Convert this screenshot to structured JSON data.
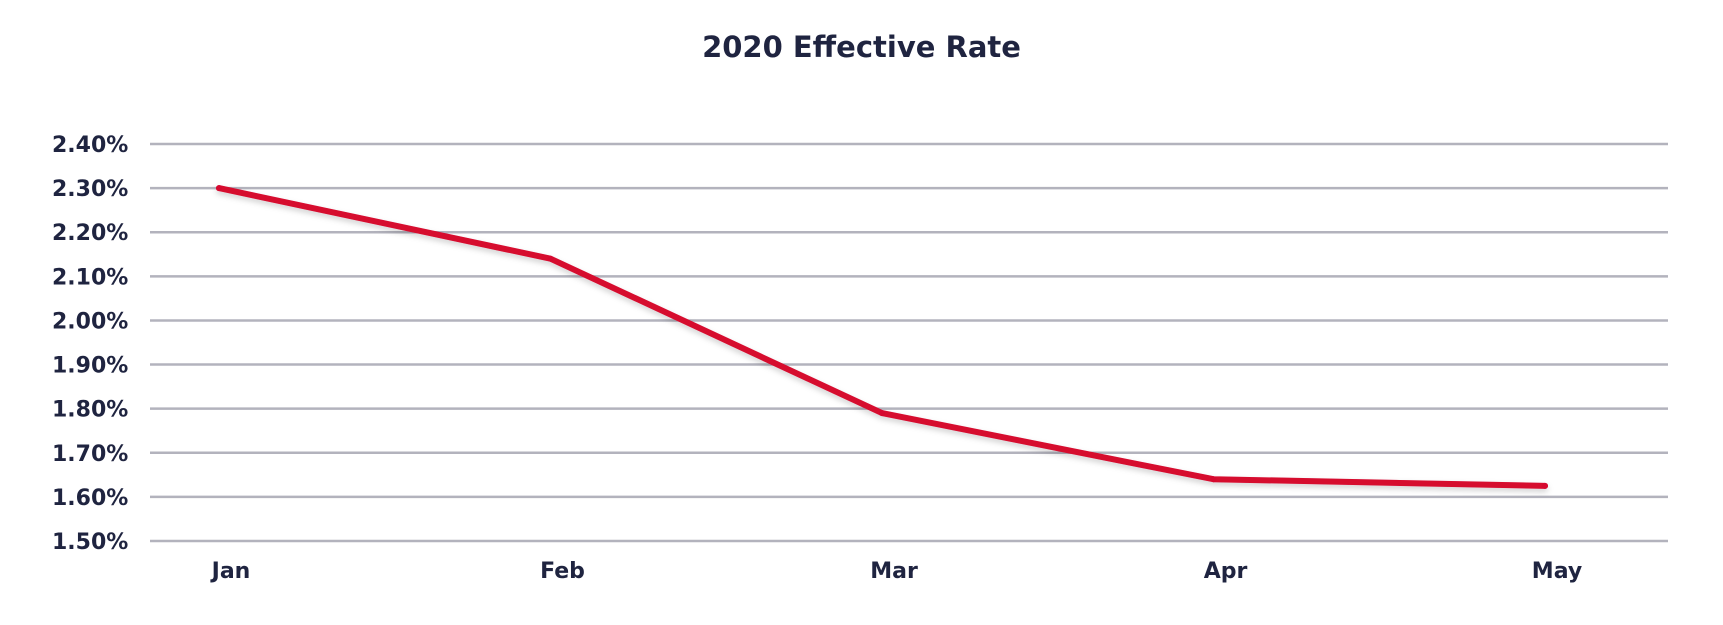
{
  "chart_data": {
    "type": "line",
    "title": "2020 Effective Rate",
    "xlabel": "",
    "ylabel": "",
    "categories": [
      "Jan",
      "Feb",
      "Mar",
      "Apr",
      "May"
    ],
    "series": [
      {
        "values": [
          2.3,
          2.14,
          1.79,
          1.64,
          1.625
        ]
      }
    ],
    "ylim": [
      1.5,
      2.4
    ],
    "yticks": [
      1.5,
      1.6,
      1.7,
      1.8,
      1.9,
      2.0,
      2.1,
      2.2,
      2.3,
      2.4
    ],
    "ytick_labels": [
      "1.50%",
      "1.60%",
      "1.70%",
      "1.80%",
      "1.90%",
      "2.00%",
      "2.10%",
      "2.20%",
      "2.30%",
      "2.40%"
    ],
    "grid": true,
    "legend": "none",
    "colors": {
      "line": "#d6082f",
      "grid": "#b3b3bd",
      "text": "#1f2440"
    }
  }
}
